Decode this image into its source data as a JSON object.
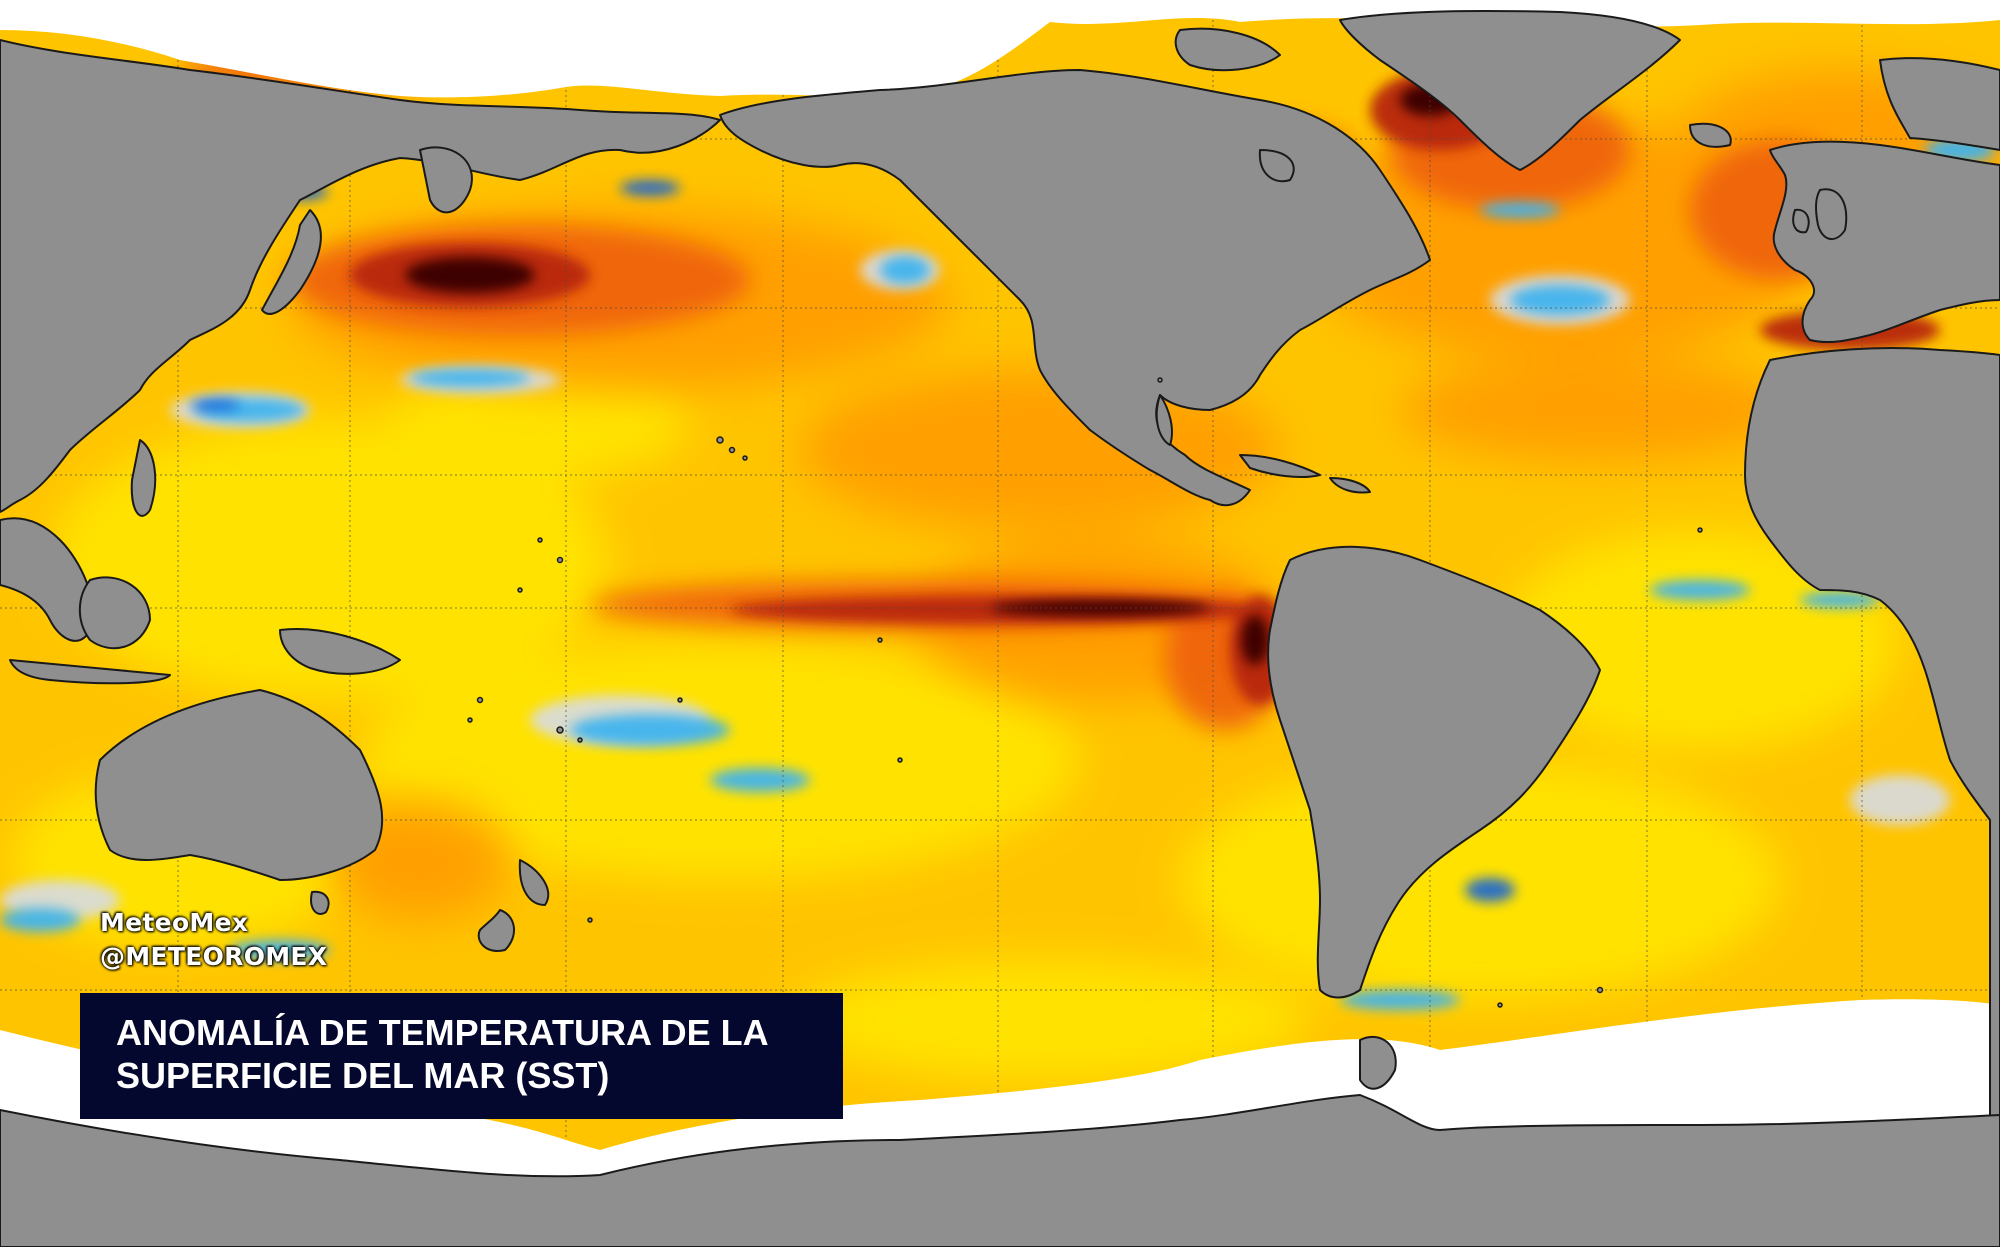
{
  "title": {
    "line1": "ANOMALÍA DE TEMPERATURA DE LA",
    "line2": "SUPERFICIE DEL MAR (SST)"
  },
  "credits": {
    "name": "MeteoMex",
    "handle": "@METEOROMEX"
  },
  "colors": {
    "land": "#8f8f8f",
    "sea_ice": "#ffffff",
    "anomaly_cool_strong": "#1565d8",
    "anomaly_cool": "#3fb4ef",
    "anomaly_neutral": "#d8dce4",
    "anomaly_warm_light": "#ffe300",
    "anomaly_warm": "#ffb400",
    "anomaly_warm_strong": "#f06a10",
    "anomaly_hot": "#c0300c",
    "anomaly_extreme": "#400404",
    "title_background": "#05082e"
  }
}
